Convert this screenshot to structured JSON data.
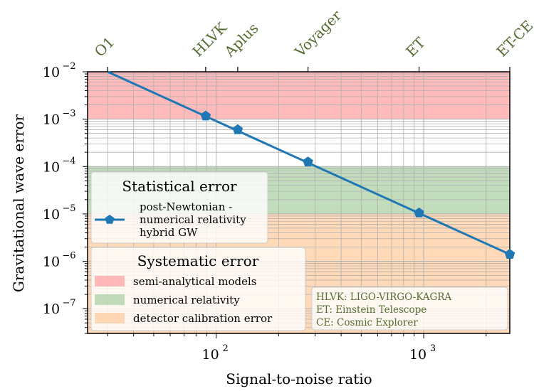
{
  "chart_data": {
    "type": "line",
    "xlabel": "Signal-to-noise ratio",
    "ylabel": "Gravitational wave error",
    "xscale": "log",
    "yscale": "log",
    "xlim": [
      24,
      2600
    ],
    "ylim": [
      3e-08,
      0.01
    ],
    "grid": true,
    "x_ticks": [
      {
        "value": 100,
        "base": "10",
        "exp": "2"
      },
      {
        "value": 1000,
        "base": "10",
        "exp": "3"
      }
    ],
    "y_ticks": [
      {
        "value": 0.01,
        "base": "10",
        "exp": "−2"
      },
      {
        "value": 0.001,
        "base": "10",
        "exp": "−3"
      },
      {
        "value": 0.0001,
        "base": "10",
        "exp": "−4"
      },
      {
        "value": 1e-05,
        "base": "10",
        "exp": "−5"
      },
      {
        "value": 1e-06,
        "base": "10",
        "exp": "−6"
      },
      {
        "value": 1e-07,
        "base": "10",
        "exp": "−7"
      }
    ],
    "top_axis": {
      "color": "#556b2f",
      "labels": [
        {
          "label": "O1",
          "x": 30
        },
        {
          "label": "HLVK",
          "x": 89
        },
        {
          "label": "Aplus",
          "x": 127
        },
        {
          "label": "Voyager",
          "x": 277
        },
        {
          "label": "ET",
          "x": 950
        },
        {
          "label": "ET-CE",
          "x": 2600
        }
      ]
    },
    "bands": [
      {
        "name": "semi-analytical models",
        "y_range": [
          0.001,
          0.01
        ],
        "color": "#ff9da0"
      },
      {
        "name": "numerical relativity",
        "y_range": [
          1e-05,
          0.0001
        ],
        "color": "#a6cfa0"
      },
      {
        "name": "detector calibration error",
        "y_range": [
          3e-08,
          1e-05
        ],
        "color": "#ffc99a"
      }
    ],
    "series": [
      {
        "name": "post-Newtonian -\nnumerical relativity\nhybrid GW",
        "color": "#1f77b4",
        "marker": "pentagon",
        "line": {
          "x": [
            30,
            2600
          ],
          "y": [
            0.01,
            1.4e-06
          ]
        },
        "points": [
          {
            "x": 89,
            "y": 0.00117
          },
          {
            "x": 127,
            "y": 0.0006
          },
          {
            "x": 277,
            "y": 0.000125
          },
          {
            "x": 950,
            "y": 1.05e-05
          },
          {
            "x": 2600,
            "y": 1.4e-06
          }
        ]
      }
    ],
    "legend_statistical": {
      "title": "Statistical error",
      "entry_lines": [
        "post-Newtonian -",
        "numerical relativity",
        "hybrid GW"
      ]
    },
    "legend_systematic": {
      "title": "Systematic error",
      "entries": [
        "semi-analytical models",
        "numerical relativity",
        "detector calibration error"
      ]
    },
    "annotation_lines": [
      "HLVK: LIGO-VIRGO-KAGRA",
      "ET: Einstein Telescope",
      "CE: Cosmic Explorer"
    ]
  }
}
